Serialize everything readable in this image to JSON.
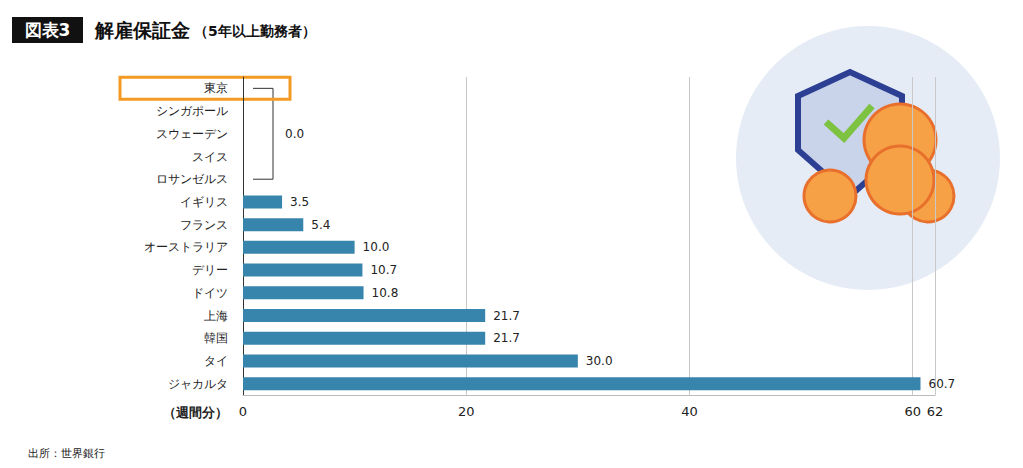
{
  "chart_data": {
    "type": "bar",
    "orientation": "horizontal",
    "badge": "図表3",
    "title": "解雇保証金",
    "subtitle": "（5年以上勤務者）",
    "x_label": "（週間分）",
    "source": "出所：世界銀行",
    "categories": [
      "東京",
      "シンガポール",
      "スウェーデン",
      "スイス",
      "ロサンゼルス",
      "イギリス",
      "フランス",
      "オーストラリア",
      "デリー",
      "ドイツ",
      "上海",
      "韓国",
      "タイ",
      "ジャカルタ"
    ],
    "values": [
      0,
      0,
      0,
      0,
      0,
      3.5,
      5.4,
      10.0,
      10.7,
      10.8,
      21.7,
      21.7,
      30.0,
      60.7
    ],
    "value_labels": [
      null,
      null,
      null,
      null,
      null,
      "3.5",
      "5.4",
      "10.0",
      "10.7",
      "10.8",
      "21.7",
      "21.7",
      "30.0",
      "60.7"
    ],
    "annotations": [
      {
        "type": "bracket",
        "text": "0.0",
        "categories": [
          "東京",
          "シンガポール",
          "スウェーデン",
          "スイス",
          "ロサンゼルス"
        ]
      },
      {
        "type": "box",
        "categories": [
          "東京"
        ]
      }
    ],
    "color": "#3784ad",
    "xlim": [
      0,
      62
    ],
    "xticks": [
      0,
      20,
      40,
      60
    ],
    "grid": true,
    "data_labels": true
  }
}
